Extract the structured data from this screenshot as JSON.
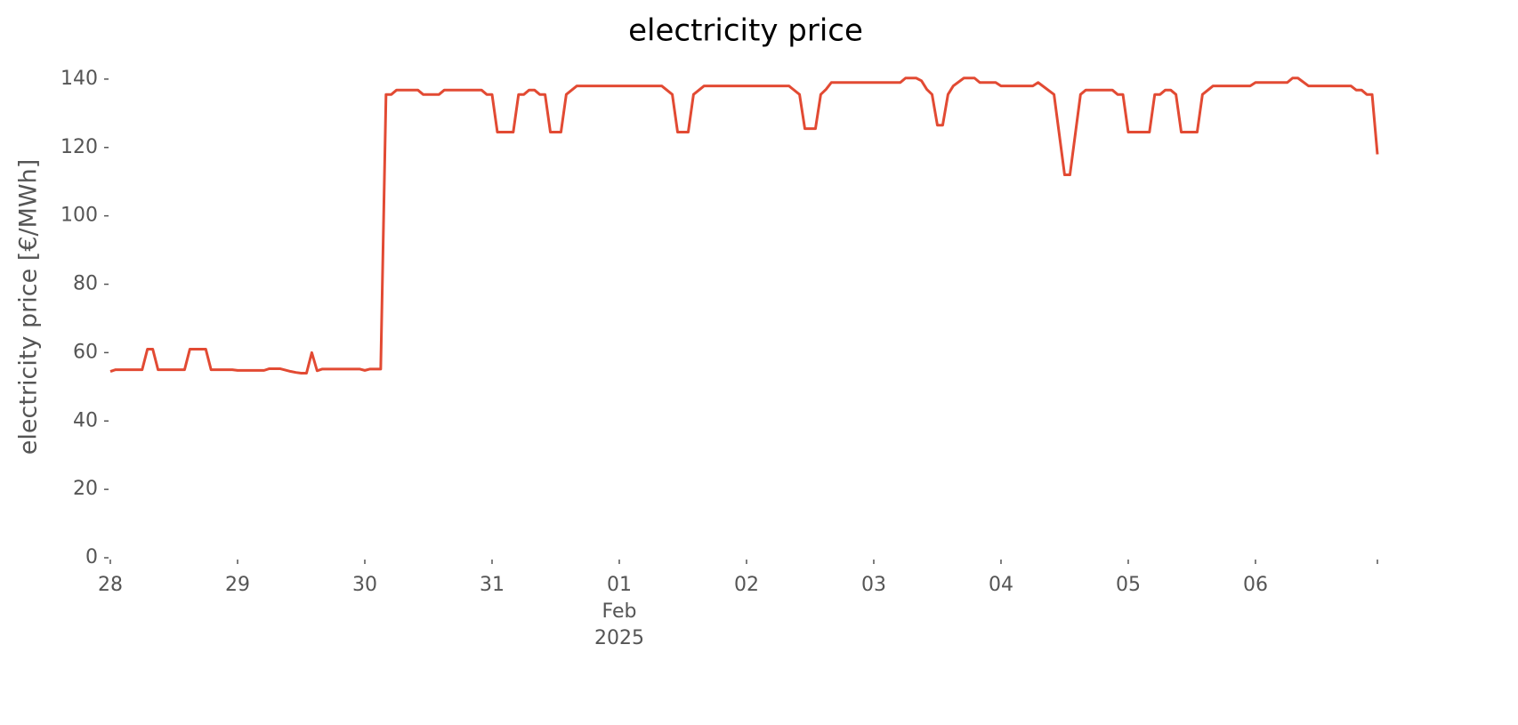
{
  "chart_data": {
    "type": "line",
    "title": "electricity price",
    "ylabel": "electricity price [€/MWh]",
    "x_month": "Feb",
    "x_year": "2025",
    "x": [
      0,
      1,
      6,
      7,
      8,
      9,
      14,
      15,
      18,
      19,
      23,
      24,
      29,
      30,
      32,
      34,
      35,
      36,
      37,
      38,
      39,
      40,
      47,
      48,
      49,
      51,
      52,
      53,
      54,
      58,
      59,
      62,
      63,
      70,
      71,
      72,
      73,
      76,
      77,
      78,
      79,
      80,
      81,
      82,
      83,
      85,
      86,
      88,
      104,
      106,
      107,
      109,
      110,
      112,
      128,
      130,
      131,
      133,
      134,
      135,
      136,
      149,
      150,
      152,
      153,
      154,
      155,
      156,
      157,
      158,
      159,
      161,
      163,
      164,
      167,
      168,
      174,
      175,
      178,
      180,
      181,
      183,
      184,
      189,
      190,
      191,
      192,
      196,
      197,
      198,
      199,
      200,
      201,
      202,
      205,
      206,
      208,
      215,
      216,
      222,
      223,
      224,
      226,
      234,
      235,
      236,
      237,
      238,
      239
    ],
    "series": [
      {
        "name": "electricity price",
        "color": "#E24A33",
        "values": [
          54.5,
          55,
          55,
          61,
          61,
          55,
          55,
          61,
          61,
          55,
          55,
          54.8,
          54.8,
          55.3,
          55.3,
          54.5,
          54.2,
          54,
          54,
          60,
          54.7,
          55.2,
          55.2,
          54.8,
          55.2,
          55.2,
          135.5,
          135.5,
          136.8,
          136.8,
          135.5,
          135.5,
          136.8,
          136.8,
          135.5,
          135.5,
          124.5,
          124.5,
          135.5,
          135.5,
          136.8,
          136.8,
          135.5,
          135.5,
          124.5,
          124.5,
          135.5,
          138,
          138,
          135.5,
          124.5,
          124.5,
          135.5,
          138,
          138,
          135.5,
          125.5,
          125.5,
          135.5,
          137,
          139,
          139,
          140.3,
          140.3,
          139.5,
          137,
          135.5,
          126.5,
          126.5,
          135.5,
          138,
          140.3,
          140.3,
          139,
          139,
          138,
          138,
          139,
          135.5,
          112,
          112,
          135.5,
          136.8,
          136.8,
          135.5,
          135.5,
          124.5,
          124.5,
          135.5,
          135.5,
          136.8,
          136.8,
          135.5,
          124.5,
          124.5,
          135.5,
          138,
          138,
          139,
          139,
          140.3,
          140.3,
          138,
          138,
          136.8,
          136.8,
          135.5,
          135.5,
          118
        ]
      }
    ],
    "xlim": [
      0,
      239
    ],
    "xticks": [
      {
        "value": 0,
        "label": "28"
      },
      {
        "value": 24,
        "label": "29"
      },
      {
        "value": 48,
        "label": "30"
      },
      {
        "value": 72,
        "label": "31"
      },
      {
        "value": 96,
        "label": "01"
      },
      {
        "value": 120,
        "label": "02"
      },
      {
        "value": 144,
        "label": "03"
      },
      {
        "value": 168,
        "label": "04"
      },
      {
        "value": 192,
        "label": "05"
      },
      {
        "value": 216,
        "label": "06"
      },
      {
        "value": 239,
        "label": null
      }
    ],
    "ylim": [
      0,
      147
    ],
    "yticks": [
      0,
      20,
      40,
      60,
      80,
      100,
      120,
      140
    ],
    "grid": false
  }
}
